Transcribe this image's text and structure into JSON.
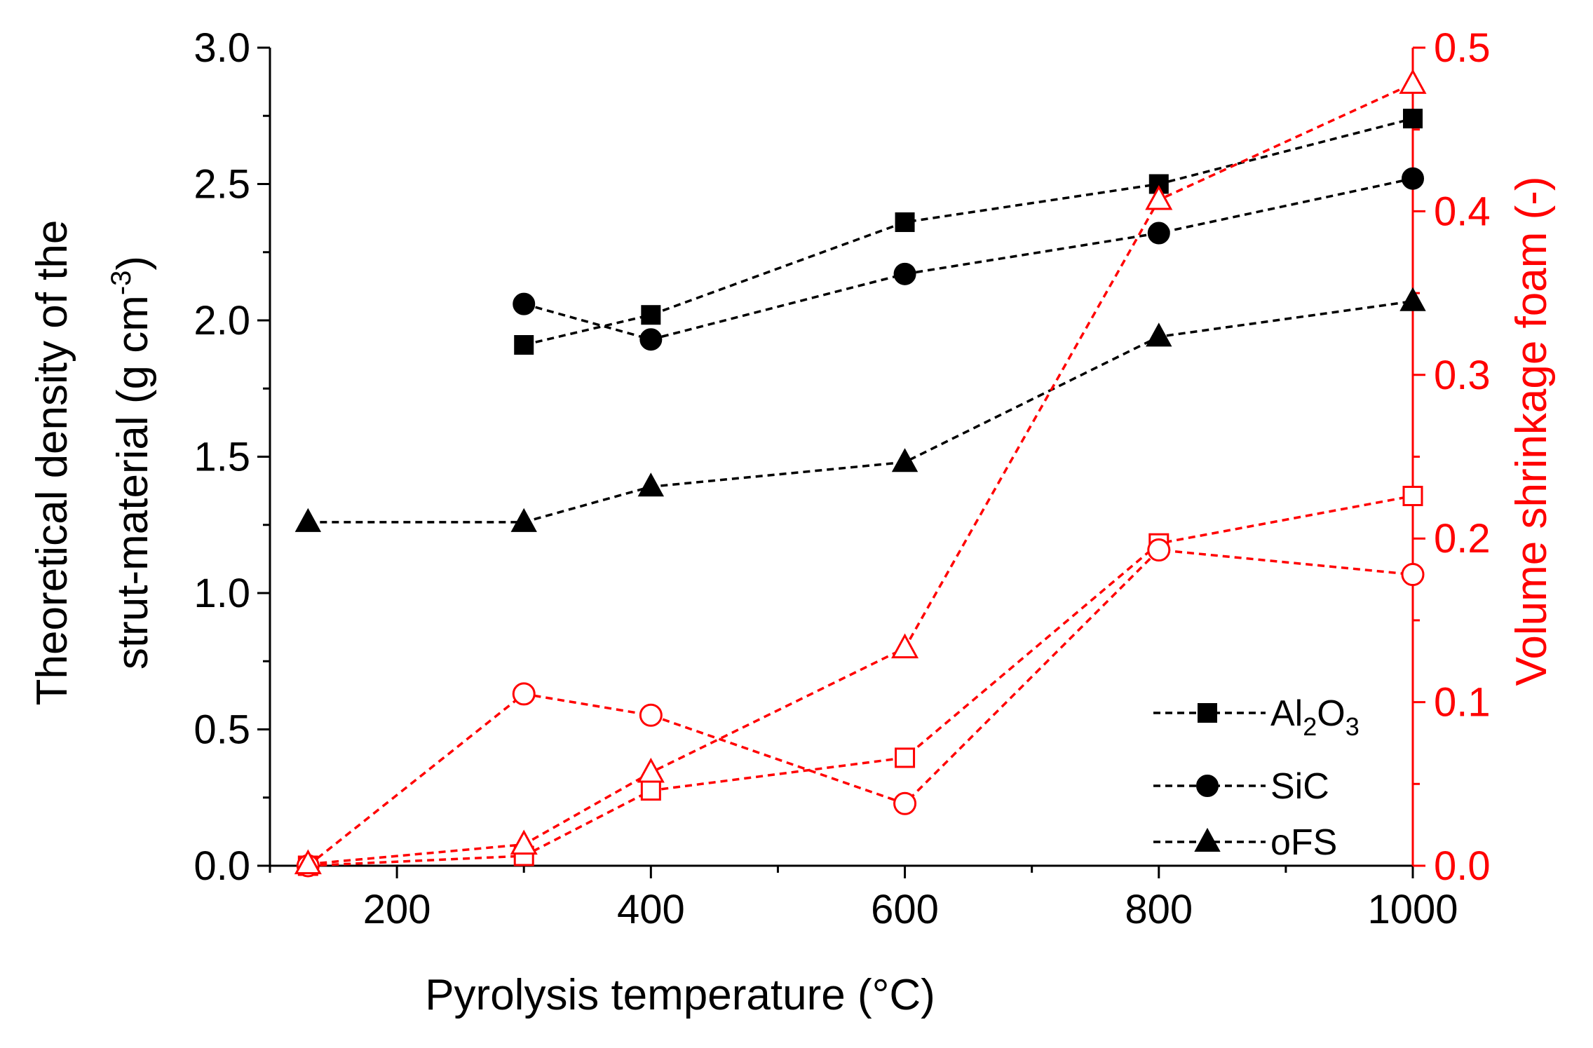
{
  "chart_data": {
    "type": "line",
    "title": "",
    "xlabel": "Pyrolysis temperature (°C)",
    "ylabel": {
      "line1": "Theoretical density of the",
      "line2_prefix": "strut-material (g cm",
      "line2_sup": "-3",
      "line2_suffix": ")"
    },
    "y2label": "Volume shrinkage foam (-)",
    "xlim": [
      100,
      1000
    ],
    "ylim": [
      0,
      3.0
    ],
    "y2lim": [
      0,
      0.5
    ],
    "xticks": [
      "200",
      "400",
      "600",
      "800",
      "1000"
    ],
    "yticks": [
      "0.0",
      "0.5",
      "1.0",
      "1.5",
      "2.0",
      "2.5",
      "3.0"
    ],
    "y2ticks": [
      "0.0",
      "0.1",
      "0.2",
      "0.3",
      "0.4",
      "0.5"
    ],
    "grid": false,
    "legend_position": "bottom-right",
    "colors": {
      "density": "#000000",
      "shrinkage": "#ff0000"
    },
    "legend": [
      {
        "name": "Al2O3",
        "marker": "square",
        "base": "Al",
        "sub1": "2",
        "mid": "O",
        "sub2": "3"
      },
      {
        "name": "SiC",
        "marker": "circle",
        "base": "SiC"
      },
      {
        "name": "oFS",
        "marker": "triangle",
        "base": "oFS"
      }
    ],
    "series": [
      {
        "name": "Al2O3 density",
        "axis": "left",
        "marker": "square",
        "filled": true,
        "x": [
          300,
          400,
          600,
          800,
          1000
        ],
        "y": [
          1.91,
          2.02,
          2.36,
          2.5,
          2.74
        ]
      },
      {
        "name": "SiC density",
        "axis": "left",
        "marker": "circle",
        "filled": true,
        "x": [
          300,
          400,
          600,
          800,
          1000
        ],
        "y": [
          2.06,
          1.93,
          2.17,
          2.32,
          2.52
        ]
      },
      {
        "name": "oFS density",
        "axis": "left",
        "marker": "triangle",
        "filled": true,
        "x": [
          130,
          300,
          400,
          600,
          800,
          1000
        ],
        "y": [
          1.26,
          1.26,
          1.39,
          1.48,
          1.94,
          2.07
        ]
      },
      {
        "name": "Al2O3 shrinkage",
        "axis": "right",
        "marker": "square",
        "filled": false,
        "x": [
          130,
          300,
          400,
          600,
          800,
          1000
        ],
        "y": [
          0.0,
          0.006,
          0.046,
          0.066,
          0.197,
          0.226
        ]
      },
      {
        "name": "SiC shrinkage",
        "axis": "right",
        "marker": "circle",
        "filled": false,
        "x": [
          130,
          300,
          400,
          600,
          800,
          1000
        ],
        "y": [
          0.0,
          0.105,
          0.092,
          0.038,
          0.193,
          0.178
        ]
      },
      {
        "name": "oFS shrinkage",
        "axis": "right",
        "marker": "triangle",
        "filled": false,
        "x": [
          130,
          300,
          400,
          600,
          800,
          1000
        ],
        "y": [
          0.001,
          0.013,
          0.057,
          0.133,
          0.407,
          0.478
        ]
      }
    ]
  }
}
